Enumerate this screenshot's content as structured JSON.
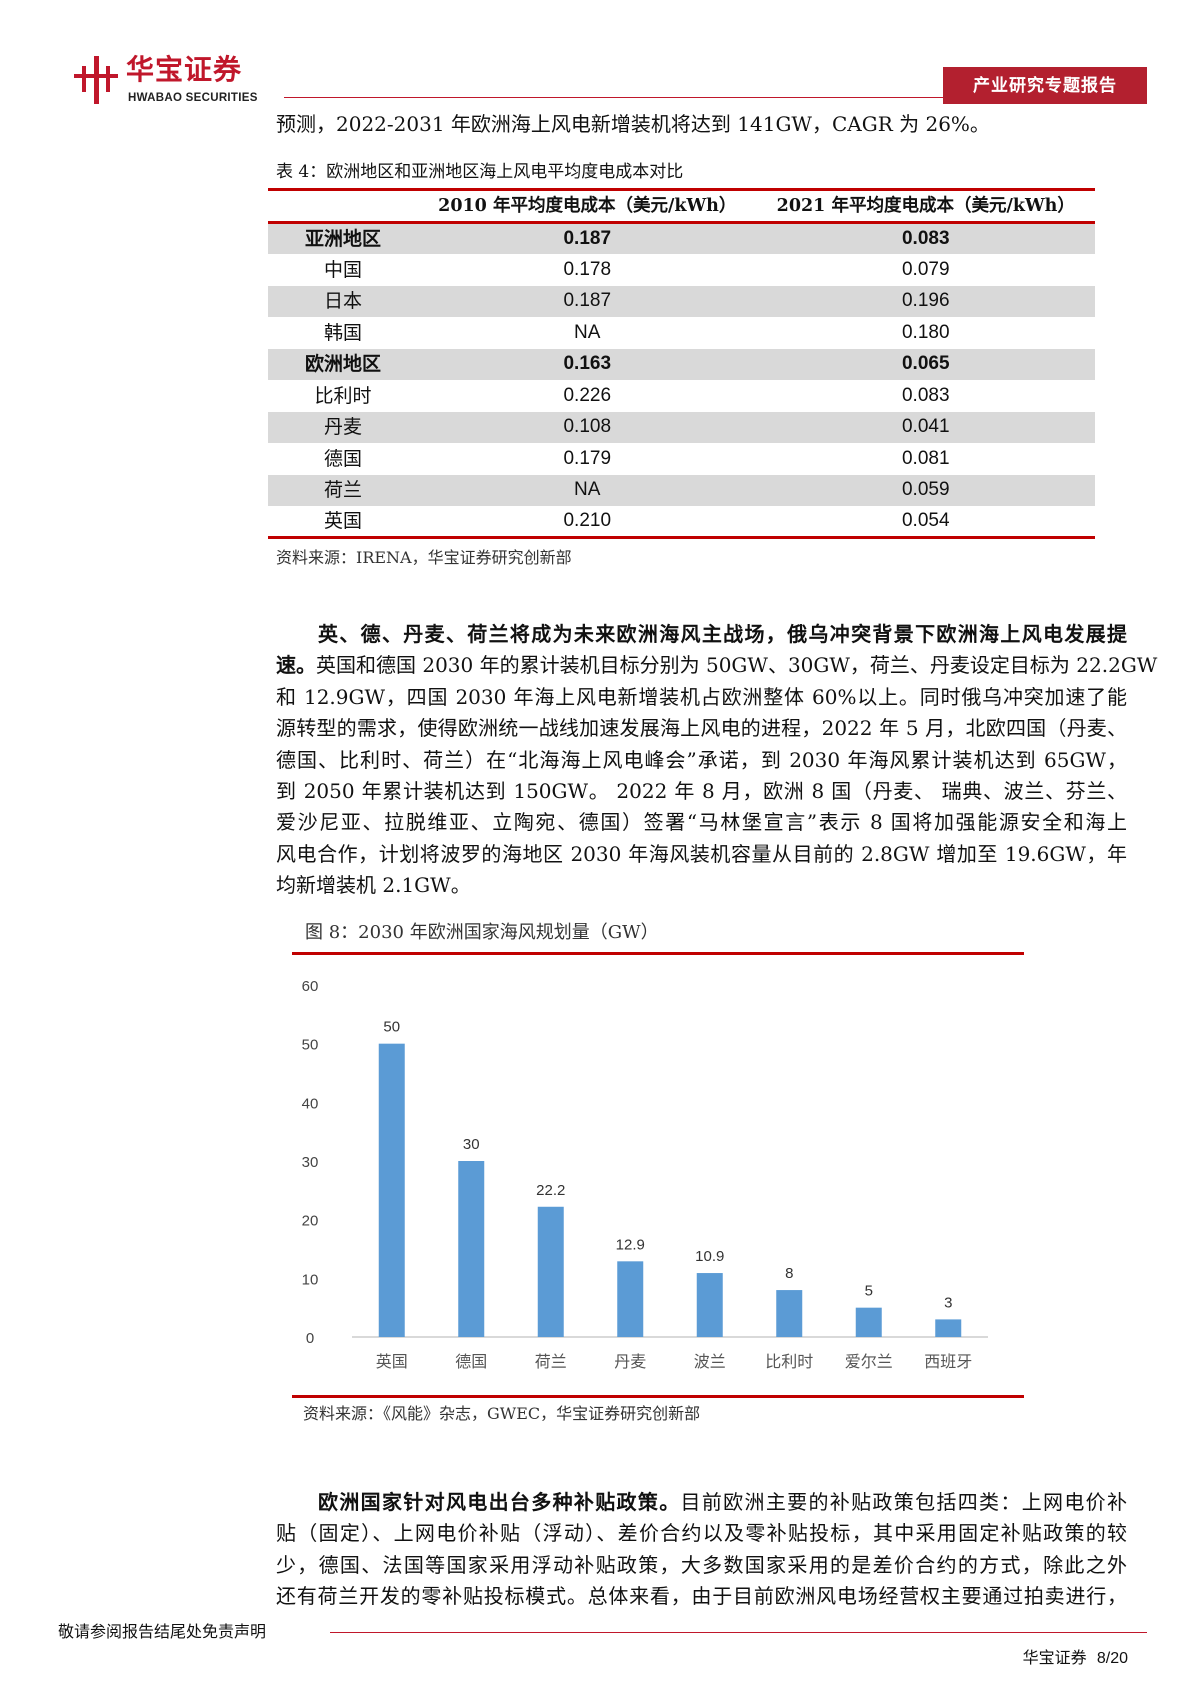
{
  "header": {
    "logo_cn": "华宝证券",
    "logo_en": "HWABAO SECURITIES",
    "report_type": "产业研究专题报告",
    "brand_color": "#b3202f"
  },
  "intro_line": "预测，2022-2031 年欧洲海上风电新增装机将达到 141GW，CAGR 为 26%。",
  "table": {
    "caption": "表 4：欧洲地区和亚洲地区海上风电平均度电成本对比",
    "headers": [
      "",
      "2010 年平均度电成本（美元/kWh）",
      "2021 年平均度电成本（美元/kWh）"
    ],
    "rows": [
      {
        "region": "亚洲地区",
        "v2010": "0.187",
        "v2021": "0.083",
        "bold": true
      },
      {
        "region": "中国",
        "v2010": "0.178",
        "v2021": "0.079"
      },
      {
        "region": "日本",
        "v2010": "0.187",
        "v2021": "0.196"
      },
      {
        "region": "韩国",
        "v2010": "NA",
        "v2021": "0.180"
      },
      {
        "region": "欧洲地区",
        "v2010": "0.163",
        "v2021": "0.065",
        "bold": true
      },
      {
        "region": "比利时",
        "v2010": "0.226",
        "v2021": "0.083"
      },
      {
        "region": "丹麦",
        "v2010": "0.108",
        "v2021": "0.041"
      },
      {
        "region": "德国",
        "v2010": "0.179",
        "v2021": "0.081"
      },
      {
        "region": "荷兰",
        "v2010": "NA",
        "v2021": "0.059"
      },
      {
        "region": "英国",
        "v2010": "0.210",
        "v2021": "0.054"
      }
    ],
    "source": "资料来源：IRENA，华宝证券研究创新部"
  },
  "paragraph1": {
    "bold": "英、德、丹麦、荷兰将成为未来欧洲海风主战场，俄乌冲突背景下欧洲海上风电发展提",
    "bold2": "速。",
    "lines": [
      "英国和德国 2030 年的累计装机目标分别为 50GW、30GW，荷兰、丹麦设定目标为 22.2GW",
      "和 12.9GW，四国 2030 年海上风电新增装机占欧洲整体 60%以上。同时俄乌冲突加速了能",
      "源转型的需求，使得欧洲统一战线加速发展海上风电的进程，2022 年 5 月，北欧四国（丹麦、",
      "德国、比利时、荷兰）在“北海海上风电峰会”承诺，到 2030 年海风累计装机达到 65GW，",
      "到 2050 年累计装机达到 150GW。 2022 年 8 月，欧洲 8 国（丹麦、 瑞典、波兰、芬兰、",
      "爱沙尼亚、拉脱维亚、立陶宛、德国）签署“马林堡宣言”表示 8 国将加强能源安全和海上",
      "风电合作，计划将波罗的海地区 2030 年海风装机容量从目前的 2.8GW 增加至 19.6GW，年",
      "均新增装机 2.1GW。"
    ]
  },
  "figure": {
    "caption": "图 8：2030 年欧洲国家海风规划量（GW）",
    "source": "资料来源：《风能》杂志，GWEC，华宝证券研究创新部"
  },
  "chart_data": {
    "type": "bar",
    "title": "",
    "categories": [
      "英国",
      "德国",
      "荷兰",
      "丹麦",
      "波兰",
      "比利时",
      "爱尔兰",
      "西班牙"
    ],
    "values": [
      50,
      30,
      22.2,
      12.9,
      10.9,
      8,
      5,
      3
    ],
    "data_labels": [
      "50",
      "30",
      "22.2",
      "12.9",
      "10.9",
      "8",
      "5",
      "3"
    ],
    "yticks": [
      "0",
      "10",
      "20",
      "30",
      "40",
      "50",
      "60"
    ],
    "ylim": [
      0,
      60
    ],
    "grid": false,
    "bar_color": "#5b9bd5"
  },
  "paragraph2": {
    "bold": "欧洲国家针对风电出台多种补贴政策。",
    "first_rest": "目前欧洲主要的补贴政策包括四类：上网电价补",
    "lines": [
      "贴（固定）、上网电价补贴（浮动）、差价合约以及零补贴投标，其中采用固定补贴政策的较",
      "少，德国、法国等国家采用浮动补贴政策，大多数国家采用的是差价合约的方式，除此之外",
      "还有荷兰开发的零补贴投标模式。总体来看，由于目前欧洲风电场经营权主要通过拍卖进行，"
    ]
  },
  "footer": {
    "disclaimer": "敬请参阅报告结尾处免责声明",
    "brand": "华宝证券",
    "page": "8/20"
  }
}
